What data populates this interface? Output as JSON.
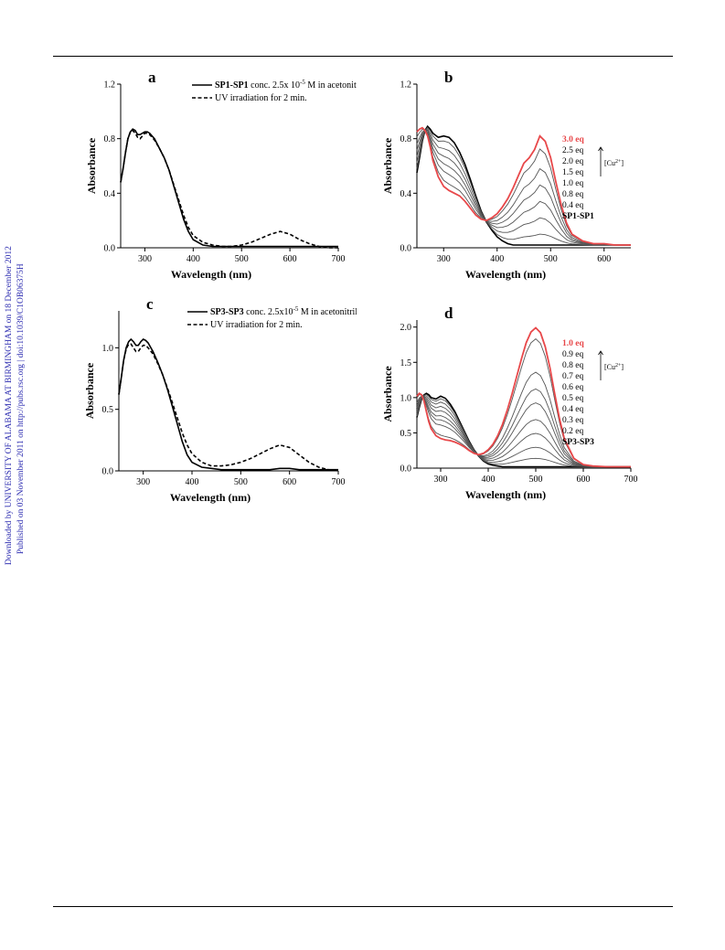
{
  "side_text": {
    "line1": "Downloaded by UNIVERSITY OF ALABAMA AT BIRMINGHAM on 18 December 2012",
    "line2": "Published on 03 November 2011 on http://pubs.rsc.org | doi:10.1039/C1OB06375H"
  },
  "colors": {
    "black": "#000000",
    "red": "#e8484a",
    "gray": "#555555"
  },
  "chart_data": [
    {
      "id": "a",
      "type": "line",
      "panel_label": "a",
      "xlabel": "Wavelength (nm)",
      "ylabel": "Absorbance",
      "xlim": [
        250,
        700
      ],
      "ylim": [
        0,
        1.2
      ],
      "xticks": [
        300,
        400,
        500,
        600,
        700
      ],
      "yticks": [
        0.0,
        0.4,
        0.8,
        1.2
      ],
      "ytick_labels": [
        "0.0",
        "0.4",
        "0.8",
        "1.2"
      ],
      "legend": [
        {
          "style": "solid",
          "bold": "SP1-SP1",
          "text": " conc. 2.5x 10",
          "sup": "-5",
          "tail": " M in acetonitrile"
        },
        {
          "style": "dashed",
          "bold": "",
          "text": "UV irradiation for 2 min.",
          "sup": "",
          "tail": ""
        }
      ],
      "series": [
        {
          "style": "solid",
          "color": "#000000",
          "x": [
            250,
            255,
            260,
            265,
            270,
            275,
            280,
            285,
            290,
            295,
            300,
            305,
            310,
            320,
            330,
            340,
            350,
            360,
            370,
            380,
            390,
            400,
            420,
            440,
            460,
            480,
            500,
            520,
            540,
            560,
            580,
            600,
            620,
            640,
            660,
            700
          ],
          "y": [
            0.48,
            0.58,
            0.7,
            0.8,
            0.85,
            0.87,
            0.86,
            0.83,
            0.83,
            0.84,
            0.85,
            0.85,
            0.84,
            0.8,
            0.73,
            0.66,
            0.57,
            0.45,
            0.33,
            0.21,
            0.12,
            0.06,
            0.02,
            0.01,
            0.01,
            0.01,
            0.01,
            0.01,
            0.01,
            0.01,
            0.01,
            0.01,
            0.01,
            0.01,
            0.01,
            0.01
          ]
        },
        {
          "style": "dashed",
          "color": "#000000",
          "x": [
            250,
            255,
            260,
            265,
            270,
            275,
            280,
            285,
            290,
            295,
            300,
            305,
            310,
            320,
            330,
            340,
            350,
            360,
            370,
            380,
            390,
            400,
            420,
            440,
            460,
            480,
            500,
            520,
            540,
            560,
            580,
            600,
            620,
            640,
            660,
            680,
            700
          ],
          "y": [
            0.48,
            0.58,
            0.7,
            0.8,
            0.85,
            0.86,
            0.84,
            0.81,
            0.8,
            0.82,
            0.84,
            0.84,
            0.83,
            0.79,
            0.73,
            0.66,
            0.57,
            0.46,
            0.35,
            0.24,
            0.15,
            0.09,
            0.04,
            0.02,
            0.01,
            0.01,
            0.02,
            0.04,
            0.07,
            0.1,
            0.12,
            0.1,
            0.06,
            0.03,
            0.01,
            0.0,
            0.0
          ]
        }
      ]
    },
    {
      "id": "b",
      "type": "line",
      "panel_label": "b",
      "xlabel": "Wavelength (nm)",
      "ylabel": "Absorbance",
      "xlim": [
        250,
        650
      ],
      "ylim": [
        0,
        1.2
      ],
      "xticks": [
        300,
        400,
        500,
        600
      ],
      "yticks": [
        0.0,
        0.4,
        0.8,
        1.2
      ],
      "ytick_labels": [
        "0.0",
        "0.4",
        "0.8",
        "1.2"
      ],
      "titration_label": "[Cu",
      "titration_sup": "2+",
      "titration_tail": "]",
      "legend": [
        {
          "text": "3.0 eq",
          "color": "#e8484a"
        },
        {
          "text": "2.5 eq",
          "color": "#000000"
        },
        {
          "text": "2.0 eq",
          "color": "#000000"
        },
        {
          "text": "1.5 eq",
          "color": "#000000"
        },
        {
          "text": "1.0 eq",
          "color": "#000000"
        },
        {
          "text": "0.8 eq",
          "color": "#000000"
        },
        {
          "text": "0.4 eq",
          "color": "#000000"
        },
        {
          "text": "SP1-SP1",
          "color": "#000000"
        }
      ],
      "titration": {
        "x": [
          250,
          255,
          260,
          265,
          270,
          275,
          280,
          290,
          300,
          310,
          320,
          330,
          340,
          350,
          360,
          370,
          380,
          390,
          400,
          410,
          420,
          430,
          440,
          450,
          460,
          470,
          480,
          490,
          500,
          510,
          520,
          530,
          540,
          560,
          580,
          600,
          620,
          650
        ],
        "base": [
          0.55,
          0.66,
          0.78,
          0.86,
          0.89,
          0.87,
          0.84,
          0.81,
          0.82,
          0.81,
          0.77,
          0.7,
          0.61,
          0.5,
          0.38,
          0.27,
          0.19,
          0.13,
          0.08,
          0.05,
          0.03,
          0.02,
          0.02,
          0.02,
          0.02,
          0.02,
          0.02,
          0.02,
          0.02,
          0.02,
          0.02,
          0.02,
          0.02,
          0.02,
          0.02,
          0.02,
          0.02,
          0.02
        ],
        "full": [
          0.85,
          0.87,
          0.88,
          0.86,
          0.82,
          0.74,
          0.64,
          0.52,
          0.45,
          0.42,
          0.4,
          0.38,
          0.34,
          0.29,
          0.24,
          0.21,
          0.2,
          0.22,
          0.25,
          0.3,
          0.36,
          0.44,
          0.53,
          0.62,
          0.66,
          0.72,
          0.82,
          0.78,
          0.66,
          0.48,
          0.31,
          0.18,
          0.1,
          0.05,
          0.03,
          0.03,
          0.02,
          0.02
        ],
        "fractions": [
          0.0,
          0.1,
          0.25,
          0.4,
          0.55,
          0.7,
          0.88,
          1.0
        ]
      }
    },
    {
      "id": "c",
      "type": "line",
      "panel_label": "c",
      "xlabel": "Wavelength (nm)",
      "ylabel": "Absorbance",
      "xlim": [
        250,
        700
      ],
      "ylim": [
        0,
        1.3
      ],
      "xticks": [
        300,
        400,
        500,
        600,
        700
      ],
      "yticks": [
        0.0,
        0.5,
        1.0
      ],
      "ytick_labels": [
        "0.0",
        "0.5",
        "1.0"
      ],
      "legend": [
        {
          "style": "solid",
          "bold": "SP3-SP3",
          "text": " conc. 2.5x10",
          "sup": "-5",
          "tail": " M in acetonitrile"
        },
        {
          "style": "dashed",
          "bold": "",
          "text": "UV irradiation for 2 min.",
          "sup": "",
          "tail": ""
        }
      ],
      "series": [
        {
          "style": "solid",
          "color": "#000000",
          "x": [
            250,
            255,
            260,
            265,
            270,
            275,
            280,
            285,
            290,
            295,
            300,
            305,
            310,
            320,
            330,
            340,
            350,
            360,
            370,
            380,
            390,
            400,
            420,
            440,
            460,
            480,
            500,
            520,
            540,
            560,
            580,
            600,
            620,
            640,
            660,
            700
          ],
          "y": [
            0.62,
            0.76,
            0.9,
            1.0,
            1.05,
            1.07,
            1.05,
            1.02,
            1.02,
            1.05,
            1.07,
            1.06,
            1.04,
            0.97,
            0.88,
            0.78,
            0.66,
            0.52,
            0.38,
            0.24,
            0.13,
            0.07,
            0.03,
            0.02,
            0.01,
            0.01,
            0.01,
            0.01,
            0.01,
            0.01,
            0.02,
            0.02,
            0.01,
            0.01,
            0.01,
            0.01
          ]
        },
        {
          "style": "dashed",
          "color": "#000000",
          "x": [
            250,
            255,
            260,
            265,
            270,
            275,
            280,
            285,
            290,
            295,
            300,
            305,
            310,
            320,
            330,
            340,
            350,
            360,
            370,
            380,
            390,
            400,
            420,
            440,
            460,
            480,
            500,
            520,
            540,
            560,
            580,
            600,
            620,
            640,
            660,
            680,
            700
          ],
          "y": [
            0.62,
            0.76,
            0.9,
            0.99,
            1.03,
            1.03,
            1.0,
            0.97,
            0.97,
            1.0,
            1.02,
            1.02,
            1.0,
            0.95,
            0.87,
            0.78,
            0.67,
            0.55,
            0.43,
            0.31,
            0.21,
            0.14,
            0.07,
            0.04,
            0.04,
            0.05,
            0.07,
            0.1,
            0.14,
            0.18,
            0.21,
            0.19,
            0.13,
            0.07,
            0.03,
            0.01,
            0.0
          ]
        }
      ]
    },
    {
      "id": "d",
      "type": "line",
      "panel_label": "d",
      "xlabel": "Wavelength (nm)",
      "ylabel": "Absorbance",
      "xlim": [
        250,
        700
      ],
      "ylim": [
        0,
        2.1
      ],
      "xticks": [
        300,
        400,
        500,
        600,
        700
      ],
      "yticks": [
        0.0,
        0.5,
        1.0,
        1.5,
        2.0
      ],
      "ytick_labels": [
        "0.0",
        "0.5",
        "1.0",
        "1.5",
        "2.0"
      ],
      "titration_label": "[Cu",
      "titration_sup": "2+",
      "titration_tail": "]",
      "legend": [
        {
          "text": "1.0 eq",
          "color": "#e8484a"
        },
        {
          "text": "0.9 eq",
          "color": "#000000"
        },
        {
          "text": "0.8 eq",
          "color": "#000000"
        },
        {
          "text": "0.7 eq",
          "color": "#000000"
        },
        {
          "text": "0.6 eq",
          "color": "#000000"
        },
        {
          "text": "0.5 eq",
          "color": "#000000"
        },
        {
          "text": "0.4 eq",
          "color": "#000000"
        },
        {
          "text": "0.3 eq",
          "color": "#000000"
        },
        {
          "text": "0.2 eq",
          "color": "#000000"
        },
        {
          "text": "SP3-SP3",
          "color": "#000000"
        }
      ],
      "titration": {
        "x": [
          250,
          255,
          260,
          265,
          270,
          275,
          280,
          290,
          300,
          310,
          320,
          330,
          340,
          350,
          360,
          370,
          380,
          390,
          400,
          410,
          420,
          430,
          440,
          450,
          460,
          470,
          480,
          490,
          500,
          510,
          520,
          530,
          540,
          550,
          560,
          580,
          600,
          620,
          650,
          700
        ],
        "base": [
          0.72,
          0.86,
          0.98,
          1.04,
          1.06,
          1.04,
          1.0,
          0.98,
          1.02,
          0.99,
          0.91,
          0.8,
          0.66,
          0.52,
          0.38,
          0.26,
          0.17,
          0.1,
          0.06,
          0.04,
          0.03,
          0.02,
          0.02,
          0.02,
          0.02,
          0.02,
          0.02,
          0.02,
          0.02,
          0.02,
          0.02,
          0.02,
          0.02,
          0.02,
          0.02,
          0.02,
          0.02,
          0.02,
          0.02,
          0.02
        ],
        "full": [
          1.02,
          1.06,
          1.04,
          0.95,
          0.8,
          0.66,
          0.56,
          0.46,
          0.42,
          0.4,
          0.39,
          0.37,
          0.34,
          0.3,
          0.25,
          0.21,
          0.19,
          0.21,
          0.26,
          0.34,
          0.46,
          0.62,
          0.82,
          1.05,
          1.3,
          1.55,
          1.78,
          1.93,
          1.99,
          1.92,
          1.72,
          1.42,
          1.05,
          0.7,
          0.42,
          0.14,
          0.05,
          0.03,
          0.02,
          0.02
        ],
        "fractions": [
          0.0,
          0.06,
          0.14,
          0.24,
          0.34,
          0.46,
          0.56,
          0.68,
          0.92,
          1.0
        ]
      }
    }
  ]
}
